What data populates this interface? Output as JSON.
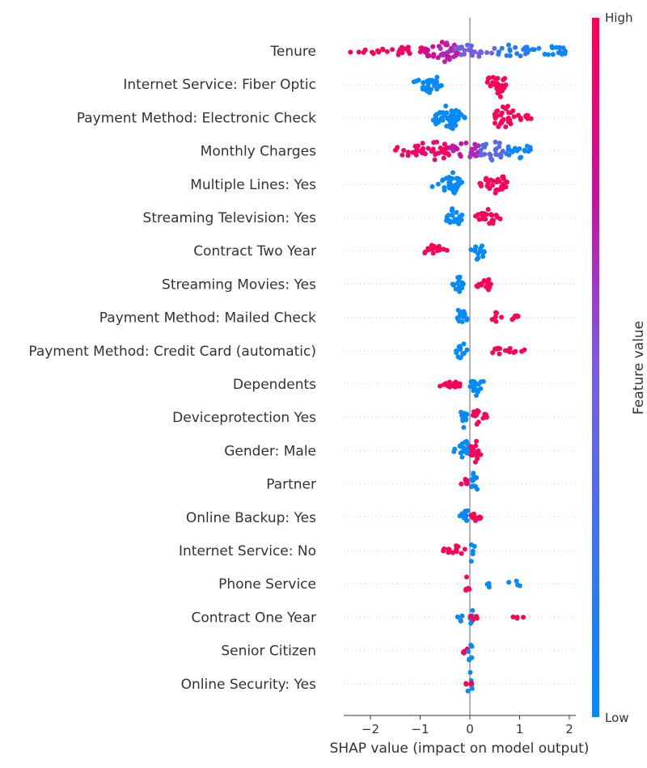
{
  "chart_data": {
    "type": "scatter",
    "subtype": "shap-beeswarm",
    "xlabel": "SHAP value (impact on model output)",
    "xlim": [
      -2.5,
      2.1
    ],
    "xticks": [
      -2,
      -1,
      0,
      1,
      2
    ],
    "tick_labels": [
      "−2",
      "−1",
      "0",
      "1",
      "2"
    ],
    "colorbar": {
      "label": "Feature value",
      "high": "High",
      "low": "Low",
      "color_low": "#008bfb",
      "color_high": "#ff0052"
    },
    "features": [
      {
        "name": "Tenure",
        "clusters": [
          {
            "range": [
              -2.4,
              -1.6
            ],
            "width": 4,
            "color": 0.98
          },
          {
            "range": [
              -1.6,
              -0.9
            ],
            "width": 7,
            "color": 0.93
          },
          {
            "range": [
              -0.9,
              -0.2
            ],
            "width": 11,
            "color": 0.8
          },
          {
            "range": [
              -0.6,
              -0.3
            ],
            "width": 15,
            "color": 0.65
          },
          {
            "range": [
              -0.3,
              0.5
            ],
            "width": 8,
            "color": 0.45
          },
          {
            "range": [
              0.5,
              1.2
            ],
            "width": 8,
            "color": 0.15
          },
          {
            "range": [
              1.2,
              1.95
            ],
            "width": 7,
            "color": 0.04
          }
        ]
      },
      {
        "name": "Internet Service: Fiber Optic",
        "clusters": [
          {
            "range": [
              -1.15,
              -0.55
            ],
            "width": 7,
            "color": 0.0
          },
          {
            "range": [
              -0.95,
              -0.6
            ],
            "width": 13,
            "color": 0.0
          },
          {
            "range": [
              0.3,
              0.75
            ],
            "width": 11,
            "color": 1.0
          },
          {
            "range": [
              0.5,
              0.7
            ],
            "width": 17,
            "color": 1.0
          }
        ]
      },
      {
        "name": "Payment Method: Electronic Check",
        "clusters": [
          {
            "range": [
              -0.7,
              -0.2
            ],
            "width": 16,
            "color": 0.0
          },
          {
            "range": [
              -0.75,
              -0.1
            ],
            "width": 8,
            "color": 0.0
          },
          {
            "range": [
              0.45,
              1.25
            ],
            "width": 6,
            "color": 1.0
          },
          {
            "range": [
              0.5,
              0.9
            ],
            "width": 16,
            "color": 1.0
          }
        ]
      },
      {
        "name": "Monthly Charges",
        "clusters": [
          {
            "range": [
              -1.6,
              -0.9
            ],
            "width": 6,
            "color": 0.97
          },
          {
            "range": [
              -1.1,
              -0.4
            ],
            "width": 13,
            "color": 0.93
          },
          {
            "range": [
              -0.4,
              0.2
            ],
            "width": 13,
            "color": 0.7
          },
          {
            "range": [
              0.2,
              0.8
            ],
            "width": 12,
            "color": 0.35
          },
          {
            "range": [
              0.7,
              1.3
            ],
            "width": 9,
            "color": 0.05
          }
        ]
      },
      {
        "name": "Multiple Lines: Yes",
        "clusters": [
          {
            "range": [
              -0.8,
              -0.15
            ],
            "width": 8,
            "color": 0.0
          },
          {
            "range": [
              -0.55,
              -0.2
            ],
            "width": 15,
            "color": 0.0
          },
          {
            "range": [
              0.2,
              0.75
            ],
            "width": 9,
            "color": 1.0
          },
          {
            "range": [
              0.45,
              0.7
            ],
            "width": 15,
            "color": 1.0
          }
        ]
      },
      {
        "name": "Streaming Television: Yes",
        "clusters": [
          {
            "range": [
              -0.5,
              -0.15
            ],
            "width": 8,
            "color": 0.0
          },
          {
            "range": [
              -0.4,
              -0.2
            ],
            "width": 14,
            "color": 0.0
          },
          {
            "range": [
              0.1,
              0.65
            ],
            "width": 6,
            "color": 1.0
          },
          {
            "range": [
              0.2,
              0.5
            ],
            "width": 12,
            "color": 1.0
          }
        ]
      },
      {
        "name": "Contract Two Year",
        "clusters": [
          {
            "range": [
              -1.0,
              -0.45
            ],
            "width": 4,
            "color": 1.0
          },
          {
            "range": [
              -0.85,
              -0.55
            ],
            "width": 8,
            "color": 1.0
          },
          {
            "range": [
              -0.1,
              0.3
            ],
            "width": 4,
            "color": 0.0
          },
          {
            "range": [
              0.1,
              0.3
            ],
            "width": 15,
            "color": 0.0
          }
        ]
      },
      {
        "name": "Streaming Movies: Yes",
        "clusters": [
          {
            "range": [
              -0.4,
              -0.1
            ],
            "width": 7,
            "color": 0.0
          },
          {
            "range": [
              -0.3,
              -0.15
            ],
            "width": 14,
            "color": 0.0
          },
          {
            "range": [
              0.1,
              0.45
            ],
            "width": 6,
            "color": 1.0
          },
          {
            "range": [
              0.2,
              0.4
            ],
            "width": 12,
            "color": 1.0
          }
        ]
      },
      {
        "name": "Payment Method: Mailed Check",
        "clusters": [
          {
            "range": [
              -0.35,
              -0.05
            ],
            "width": 8,
            "color": 0.0
          },
          {
            "range": [
              -0.25,
              -0.1
            ],
            "width": 15,
            "color": 0.0
          },
          {
            "range": [
              0.35,
              1.05
            ],
            "width": 3,
            "color": 1.0
          },
          {
            "range": [
              0.4,
              0.55
            ],
            "width": 9,
            "color": 1.0
          }
        ]
      },
      {
        "name": "Payment Method: Credit Card (automatic)",
        "clusters": [
          {
            "range": [
              -0.3,
              -0.05
            ],
            "width": 8,
            "color": 0.0
          },
          {
            "range": [
              -0.25,
              -0.1
            ],
            "width": 14,
            "color": 0.0
          },
          {
            "range": [
              0.4,
              1.25
            ],
            "width": 3,
            "color": 1.0
          },
          {
            "range": [
              0.45,
              0.65
            ],
            "width": 7,
            "color": 1.0
          }
        ]
      },
      {
        "name": "Dependents",
        "clusters": [
          {
            "range": [
              -0.7,
              -0.15
            ],
            "width": 4,
            "color": 1.0
          },
          {
            "range": [
              -0.55,
              -0.2
            ],
            "width": 7,
            "color": 1.0
          },
          {
            "range": [
              0.0,
              0.3
            ],
            "width": 8,
            "color": 0.0
          },
          {
            "range": [
              0.05,
              0.2
            ],
            "width": 16,
            "color": 0.0
          }
        ]
      },
      {
        "name": "Deviceprotection Yes",
        "clusters": [
          {
            "range": [
              -0.3,
              -0.05
            ],
            "width": 7,
            "color": 0.0
          },
          {
            "range": [
              -0.2,
              -0.05
            ],
            "width": 14,
            "color": 0.0
          },
          {
            "range": [
              0.0,
              0.4
            ],
            "width": 5,
            "color": 1.0
          },
          {
            "range": [
              0.05,
              0.25
            ],
            "width": 10,
            "color": 1.0
          }
        ]
      },
      {
        "name": "Gender: Male",
        "clusters": [
          {
            "range": [
              -0.35,
              0.0
            ],
            "width": 7,
            "color": 0.0
          },
          {
            "range": [
              -0.2,
              -0.02
            ],
            "width": 14,
            "color": 0.0
          },
          {
            "range": [
              0.0,
              0.25
            ],
            "width": 9,
            "color": 1.0
          },
          {
            "range": [
              0.02,
              0.18
            ],
            "width": 16,
            "color": 1.0
          }
        ]
      },
      {
        "name": "Partner",
        "clusters": [
          {
            "range": [
              -0.2,
              -0.05
            ],
            "width": 8,
            "color": 1.0
          },
          {
            "range": [
              -0.15,
              -0.05
            ],
            "width": 11,
            "color": 1.0
          },
          {
            "range": [
              0.0,
              0.2
            ],
            "width": 8,
            "color": 0.0
          },
          {
            "range": [
              0.03,
              0.15
            ],
            "width": 16,
            "color": 0.0
          }
        ]
      },
      {
        "name": "Online Backup: Yes",
        "clusters": [
          {
            "range": [
              -0.2,
              0.0
            ],
            "width": 8,
            "color": 0.0
          },
          {
            "range": [
              -0.12,
              -0.02
            ],
            "width": 14,
            "color": 0.0
          },
          {
            "range": [
              0.0,
              0.3
            ],
            "width": 5,
            "color": 1.0
          },
          {
            "range": [
              0.02,
              0.2
            ],
            "width": 10,
            "color": 1.0
          }
        ]
      },
      {
        "name": "Internet Service: No",
        "clusters": [
          {
            "range": [
              -0.55,
              -0.05
            ],
            "width": 4,
            "color": 1.0
          },
          {
            "range": [
              -0.45,
              -0.1
            ],
            "width": 6,
            "color": 1.0
          },
          {
            "range": [
              0.0,
              0.1
            ],
            "width": 15,
            "color": 0.0
          }
        ]
      },
      {
        "name": "Phone Service",
        "clusters": [
          {
            "range": [
              -0.1,
              0.0
            ],
            "width": 14,
            "color": 1.0
          },
          {
            "range": [
              0.25,
              0.45
            ],
            "width": 5,
            "color": 0.0
          },
          {
            "range": [
              0.75,
              1.05
            ],
            "width": 4,
            "color": 0.0
          }
        ]
      },
      {
        "name": "Contract One Year",
        "clusters": [
          {
            "range": [
              -0.25,
              -0.15
            ],
            "width": 7,
            "color": 0.0
          },
          {
            "range": [
              0.0,
              0.1
            ],
            "width": 14,
            "color": 0.0
          },
          {
            "range": [
              -0.15,
              0.2
            ],
            "width": 3,
            "color": 1.0
          },
          {
            "range": [
              0.85,
              1.1
            ],
            "width": 4,
            "color": 1.0
          }
        ]
      },
      {
        "name": "Senior Citizen",
        "clusters": [
          {
            "range": [
              -0.3,
              -0.05
            ],
            "width": 5,
            "color": 1.0
          },
          {
            "range": [
              -0.05,
              0.05
            ],
            "width": 17,
            "color": 0.0
          }
        ]
      },
      {
        "name": "Online Security: Yes",
        "clusters": [
          {
            "range": [
              -0.05,
              0.05
            ],
            "width": 15,
            "color": 0.0
          },
          {
            "range": [
              -0.1,
              0.05
            ],
            "width": 3,
            "color": 1.0
          }
        ]
      }
    ]
  }
}
